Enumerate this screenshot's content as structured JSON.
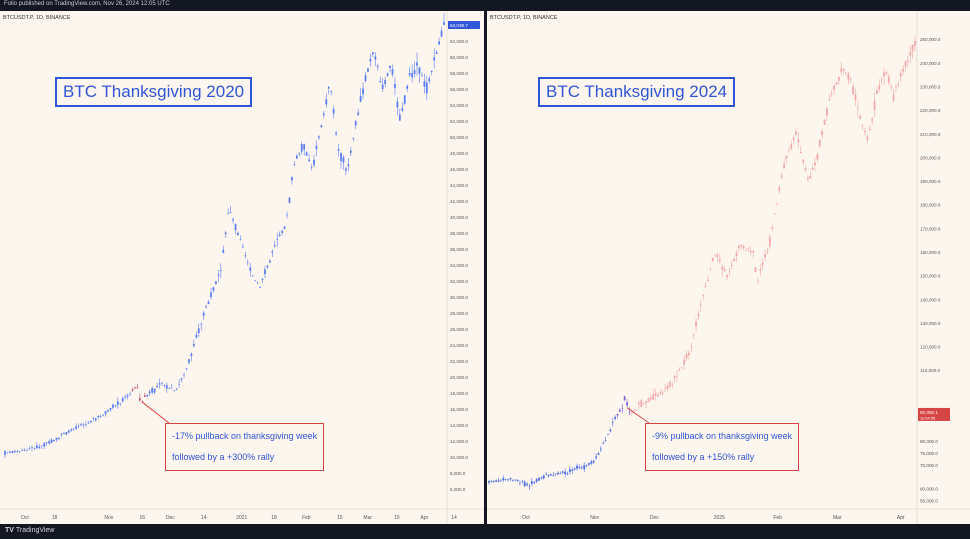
{
  "header": {
    "published": "Folio published on TradingView.com, Nov 26, 2024 12:05 UTC"
  },
  "footer": {
    "brand": "TradingView"
  },
  "colors": {
    "blue": "#2f56d6",
    "bull": "#5b7ff0",
    "pink": "#f2a9a9",
    "red": "#d64545",
    "bg": "#fdf6ef"
  },
  "chart_data": [
    {
      "type": "candlestick",
      "symbol": "BTCUSDT.P, 1D, BINANCE",
      "title": "BTC Thanksgiving 2020",
      "ylim": [
        4000,
        64000
      ],
      "y_ticks": [
        6000,
        8000,
        10000,
        12000,
        14000,
        16000,
        18000,
        20000,
        22000,
        24000,
        26000,
        28000,
        30000,
        32000,
        34000,
        36000,
        38000,
        40000,
        42000,
        44000,
        46000,
        48000,
        50000,
        52000,
        54000,
        56000,
        58000,
        60000,
        62000
      ],
      "y_tick_labels": [
        "6,000.0",
        "8,000.0",
        "10,000.0",
        "12,000.0",
        "14,000.0",
        "16,000.0",
        "18,000.0",
        "20,000.0",
        "22,000.0",
        "24,000.0",
        "26,000.0",
        "28,000.0",
        "30,000.0",
        "32,000.0",
        "34,000.0",
        "36,000.0",
        "38,000.0",
        "40,000.0",
        "42,000.0",
        "44,000.0",
        "46,000.0",
        "48,000.0",
        "50,000.0",
        "52,000.0",
        "54,000.0",
        "56,000.0",
        "58,000.0",
        "60,000.0",
        "62,000.0"
      ],
      "price_label": "63,038.7",
      "x_labels": [
        "Oct",
        "18",
        "Nov",
        "16",
        "Dec",
        "14",
        "2021",
        "18",
        "Feb",
        "15",
        "Mar",
        "15",
        "Apr",
        "14"
      ],
      "x_label_pos": [
        0.0,
        0.07,
        0.19,
        0.27,
        0.33,
        0.41,
        0.49,
        0.57,
        0.64,
        0.72,
        0.78,
        0.85,
        0.91,
        0.98
      ],
      "path": [
        [
          0,
          10500
        ],
        [
          0.04,
          10800
        ],
        [
          0.09,
          11500
        ],
        [
          0.14,
          13000
        ],
        [
          0.19,
          14300
        ],
        [
          0.23,
          15500
        ],
        [
          0.27,
          17200
        ],
        [
          0.3,
          18900
        ],
        [
          0.31,
          16900
        ],
        [
          0.33,
          18200
        ],
        [
          0.36,
          19000
        ],
        [
          0.39,
          18500
        ],
        [
          0.41,
          20500
        ],
        [
          0.43,
          24000
        ],
        [
          0.46,
          29000
        ],
        [
          0.49,
          33000
        ],
        [
          0.51,
          41000
        ],
        [
          0.53,
          38000
        ],
        [
          0.56,
          33000
        ],
        [
          0.58,
          31500
        ],
        [
          0.6,
          34000
        ],
        [
          0.62,
          37000
        ],
        [
          0.64,
          39000
        ],
        [
          0.66,
          47000
        ],
        [
          0.68,
          49000
        ],
        [
          0.7,
          46000
        ],
        [
          0.72,
          51000
        ],
        [
          0.74,
          57000
        ],
        [
          0.76,
          48000
        ],
        [
          0.78,
          46000
        ],
        [
          0.8,
          52000
        ],
        [
          0.82,
          57000
        ],
        [
          0.84,
          61000
        ],
        [
          0.86,
          56000
        ],
        [
          0.88,
          59000
        ],
        [
          0.9,
          52000
        ],
        [
          0.92,
          57000
        ],
        [
          0.94,
          59000
        ],
        [
          0.96,
          56000
        ],
        [
          0.98,
          60000
        ],
        [
          1.0,
          64000
        ]
      ],
      "highlight_range": [
        0.29,
        0.32
      ],
      "annotation": {
        "line1": "-17% pullback on thanksgiving week",
        "line2": "followed by a +300% rally"
      }
    },
    {
      "type": "candlestick",
      "symbol": "BTCUSDT.P, 1D, BINANCE",
      "title": "BTC Thanksgiving 2024",
      "ylim": [
        53000,
        256000
      ],
      "y_ticks": [
        55000,
        60000,
        70000,
        75000,
        80000,
        90000,
        110000,
        120000,
        130000,
        140000,
        150000,
        160000,
        170000,
        180000,
        190000,
        200000,
        210000,
        220000,
        230000,
        240000,
        250000
      ],
      "y_tick_labels": [
        "55,000.0",
        "60,000.0",
        "70,000.0",
        "75,000.0",
        "80,000.0",
        "90,000.0",
        "110,000.0",
        "120,000.0",
        "130,000.0",
        "140,000.0",
        "150,000.0",
        "160,000.0",
        "170,000.0",
        "180,000.0",
        "190,000.0",
        "200,000.0",
        "210,000.0",
        "220,000.0",
        "230,000.0",
        "240,000.0",
        "250,000.0"
      ],
      "price_label": "92,350.1",
      "price_label_sub": "11:54:55",
      "x_labels": [
        "Oct",
        "Nov",
        "Dec",
        "2025",
        "Feb",
        "Mar",
        "Apr"
      ],
      "x_label_pos": [
        0.04,
        0.2,
        0.34,
        0.49,
        0.63,
        0.77,
        0.92
      ],
      "path": [
        [
          0,
          63000
        ],
        [
          0.05,
          64000
        ],
        [
          0.09,
          61500
        ],
        [
          0.13,
          65000
        ],
        [
          0.18,
          67000
        ],
        [
          0.22,
          69000
        ],
        [
          0.25,
          72000
        ],
        [
          0.27,
          79000
        ],
        [
          0.29,
          88000
        ],
        [
          0.31,
          93000
        ],
        [
          0.32,
          99000
        ],
        [
          0.33,
          91000
        ],
        [
          0.35,
          95000
        ],
        [
          0.38,
          98000
        ],
        [
          0.41,
          101000
        ],
        [
          0.44,
          107000
        ],
        [
          0.47,
          118000
        ],
        [
          0.5,
          140000
        ],
        [
          0.53,
          160000
        ],
        [
          0.56,
          150000
        ],
        [
          0.59,
          163000
        ],
        [
          0.62,
          160000
        ],
        [
          0.63,
          147000
        ],
        [
          0.66,
          165000
        ],
        [
          0.69,
          195000
        ],
        [
          0.72,
          210000
        ],
        [
          0.75,
          190000
        ],
        [
          0.77,
          200000
        ],
        [
          0.8,
          225000
        ],
        [
          0.83,
          238000
        ],
        [
          0.85,
          232000
        ],
        [
          0.87,
          218000
        ],
        [
          0.89,
          207000
        ],
        [
          0.91,
          227000
        ],
        [
          0.93,
          238000
        ],
        [
          0.95,
          225000
        ],
        [
          0.97,
          237000
        ],
        [
          1.0,
          248000
        ]
      ],
      "blue_until": 0.32,
      "highlight_range": [
        0.3,
        0.335
      ],
      "annotation": {
        "line1": "-9% pullback on thanksgiving week",
        "line2": "followed by a +150% rally"
      }
    }
  ]
}
